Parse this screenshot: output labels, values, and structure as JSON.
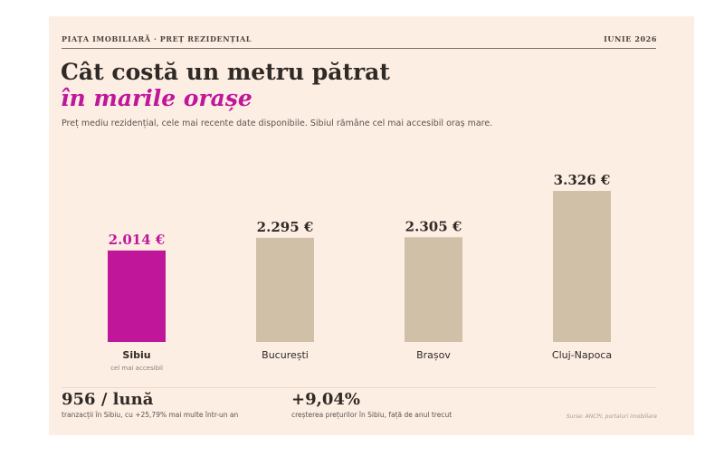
{
  "header": {
    "eyebrow": "PIAȚA IMOBILIARĂ · PREȚ REZIDENȚIAL",
    "date": "IUNIE 2026"
  },
  "headline": {
    "line1": "Cât costă un metru pătrat",
    "line2": "în marile orașe"
  },
  "subtitle": "Preț mediu rezidențial, cele mai recente date disponibile. Sibiul rămâne cel mai accesibil oraș mare.",
  "colors": {
    "accent": "#c0169a",
    "bar": "#d0c0a8",
    "text": "#2f2a26",
    "background": "#fdeee4"
  },
  "chart_data": {
    "type": "bar",
    "categories": [
      "Sibiu",
      "București",
      "Brașov",
      "Cluj-Napoca"
    ],
    "values": [
      2014,
      2295,
      2305,
      3326
    ],
    "value_labels": [
      "2.014 €",
      "2.295 €",
      "2.305 €",
      "3.326 €"
    ],
    "highlight_index": 0,
    "highlight_note": "cel mai accesibil",
    "unit": "€",
    "ylim": [
      0,
      3326
    ],
    "grid": false,
    "legend": "none"
  },
  "stats": [
    {
      "value": "956 / lună",
      "caption": "tranzacții în Sibiu, cu +25,79% mai multe într-un an"
    },
    {
      "value": "+9,04%",
      "caption": "creșterea prețurilor în Sibiu, față de anul trecut"
    }
  ],
  "source": "Surse: ANCPI, portaluri imobiliare"
}
